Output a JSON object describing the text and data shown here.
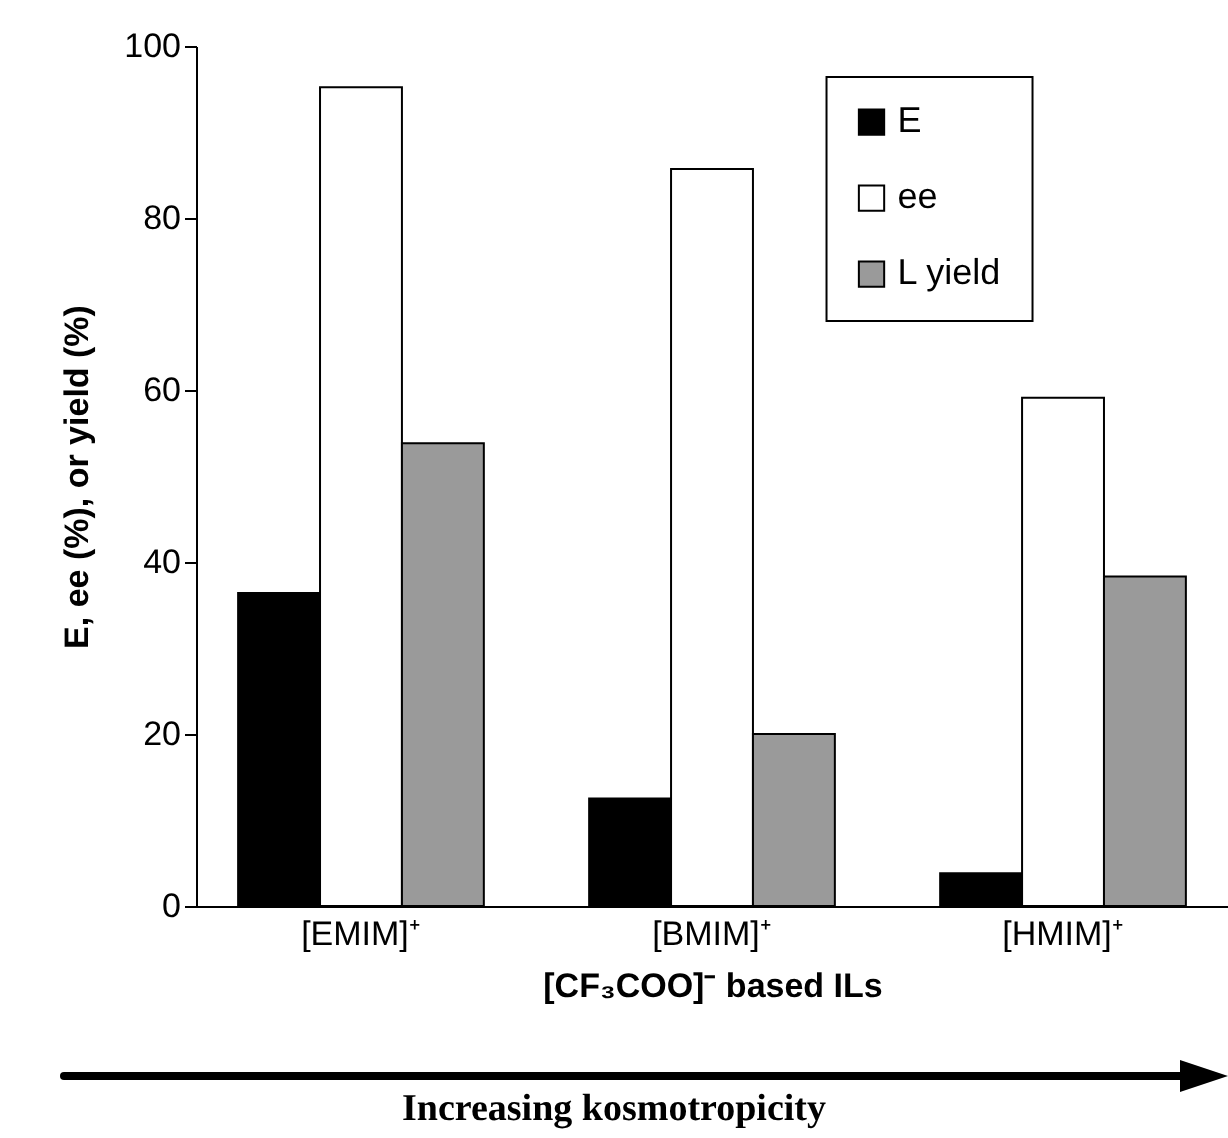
{
  "chart_data": {
    "type": "bar",
    "categories": [
      "[EMIM]⁺",
      "[BMIM]⁺",
      "[HMIM]⁺"
    ],
    "xlabel": "[CF₃COO]⁻ based ILs",
    "ylabel": "E, ee (%), or yield (%)",
    "series": [
      {
        "name": "E",
        "color": "#000000",
        "values": [
          36.4,
          12.5,
          3.8
        ]
      },
      {
        "name": "ee",
        "color": "#ffffff",
        "values": [
          95.2,
          85.7,
          59.1
        ]
      },
      {
        "name": "L yield",
        "color": "#9a9a9a",
        "values": [
          53.8,
          20.0,
          38.3
        ]
      }
    ],
    "ylim": [
      0,
      100
    ],
    "yticks": [
      0,
      20,
      40,
      60,
      80,
      100
    ],
    "grid": false,
    "legend": "top right",
    "annotations": [
      "Increasing kosmotropicity"
    ]
  }
}
